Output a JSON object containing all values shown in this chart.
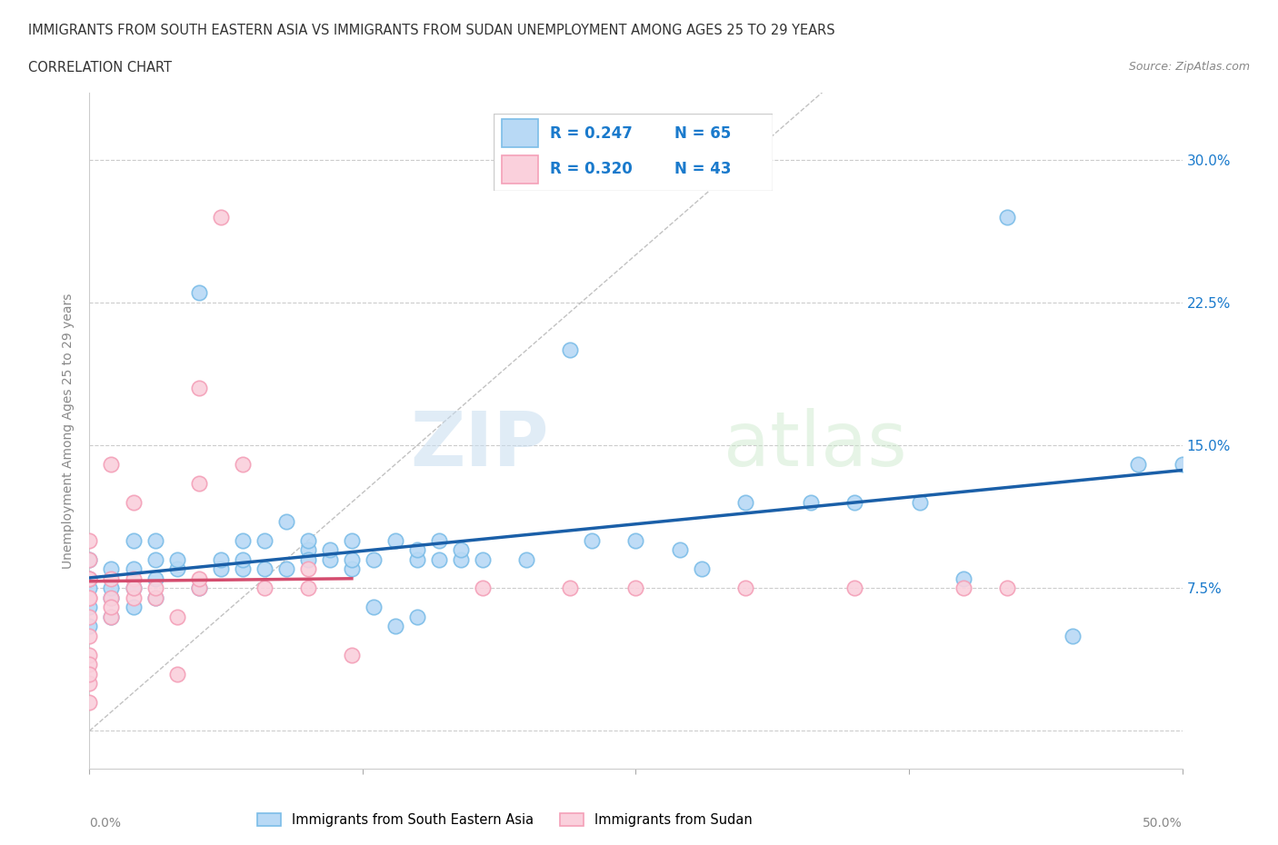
{
  "title_line1": "IMMIGRANTS FROM SOUTH EASTERN ASIA VS IMMIGRANTS FROM SUDAN UNEMPLOYMENT AMONG AGES 25 TO 29 YEARS",
  "title_line2": "CORRELATION CHART",
  "source_text": "Source: ZipAtlas.com",
  "ylabel": "Unemployment Among Ages 25 to 29 years",
  "xlim": [
    0.0,
    0.5
  ],
  "ylim": [
    -0.02,
    0.335
  ],
  "yticks": [
    0.0,
    0.075,
    0.15,
    0.225,
    0.3
  ],
  "ytick_labels": [
    "",
    "7.5%",
    "15.0%",
    "22.5%",
    "30.0%"
  ],
  "xticks": [
    0.0,
    0.125,
    0.25,
    0.375,
    0.5
  ],
  "sea_color": "#7cbde8",
  "sea_fill": "#b8d9f5",
  "sudan_color": "#f4a0b8",
  "sudan_fill": "#fad0dc",
  "trendline_sea_color": "#1a5fa8",
  "trendline_sudan_color": "#d44c6e",
  "diagonal_color": "#bbbbbb",
  "R_sea": 0.247,
  "N_sea": 65,
  "R_sudan": 0.32,
  "N_sudan": 43,
  "legend_R_color": "#1a7acc",
  "sea_label": "Immigrants from South Eastern Asia",
  "sudan_label": "Immigrants from Sudan",
  "sea_points_x": [
    0.0,
    0.0,
    0.0,
    0.0,
    0.0,
    0.01,
    0.01,
    0.01,
    0.01,
    0.02,
    0.02,
    0.02,
    0.02,
    0.03,
    0.03,
    0.03,
    0.03,
    0.04,
    0.04,
    0.05,
    0.05,
    0.06,
    0.06,
    0.07,
    0.07,
    0.07,
    0.08,
    0.08,
    0.09,
    0.09,
    0.1,
    0.1,
    0.1,
    0.11,
    0.11,
    0.12,
    0.12,
    0.12,
    0.13,
    0.13,
    0.14,
    0.14,
    0.15,
    0.15,
    0.15,
    0.16,
    0.16,
    0.17,
    0.17,
    0.18,
    0.2,
    0.22,
    0.23,
    0.25,
    0.27,
    0.28,
    0.3,
    0.33,
    0.35,
    0.38,
    0.4,
    0.42,
    0.45,
    0.48,
    0.5
  ],
  "sea_points_y": [
    0.075,
    0.08,
    0.065,
    0.055,
    0.09,
    0.07,
    0.075,
    0.06,
    0.085,
    0.075,
    0.085,
    0.1,
    0.065,
    0.08,
    0.09,
    0.1,
    0.07,
    0.085,
    0.09,
    0.23,
    0.075,
    0.085,
    0.09,
    0.085,
    0.1,
    0.09,
    0.085,
    0.1,
    0.085,
    0.11,
    0.095,
    0.09,
    0.1,
    0.09,
    0.095,
    0.085,
    0.1,
    0.09,
    0.065,
    0.09,
    0.055,
    0.1,
    0.06,
    0.09,
    0.095,
    0.09,
    0.1,
    0.09,
    0.095,
    0.09,
    0.09,
    0.2,
    0.1,
    0.1,
    0.095,
    0.085,
    0.12,
    0.12,
    0.12,
    0.12,
    0.08,
    0.27,
    0.05,
    0.14,
    0.14
  ],
  "sudan_points_x": [
    0.0,
    0.0,
    0.0,
    0.0,
    0.0,
    0.0,
    0.0,
    0.0,
    0.0,
    0.0,
    0.0,
    0.0,
    0.0,
    0.01,
    0.01,
    0.01,
    0.01,
    0.01,
    0.02,
    0.02,
    0.02,
    0.02,
    0.03,
    0.03,
    0.04,
    0.04,
    0.05,
    0.05,
    0.05,
    0.05,
    0.06,
    0.07,
    0.08,
    0.1,
    0.1,
    0.12,
    0.18,
    0.22,
    0.25,
    0.3,
    0.35,
    0.4,
    0.42
  ],
  "sudan_points_y": [
    0.07,
    0.08,
    0.07,
    0.06,
    0.05,
    0.09,
    0.1,
    0.04,
    0.035,
    0.08,
    0.025,
    0.03,
    0.015,
    0.07,
    0.08,
    0.06,
    0.065,
    0.14,
    0.07,
    0.08,
    0.075,
    0.12,
    0.07,
    0.075,
    0.03,
    0.06,
    0.075,
    0.08,
    0.13,
    0.18,
    0.27,
    0.14,
    0.075,
    0.085,
    0.075,
    0.04,
    0.075,
    0.075,
    0.075,
    0.075,
    0.075,
    0.075,
    0.075
  ]
}
